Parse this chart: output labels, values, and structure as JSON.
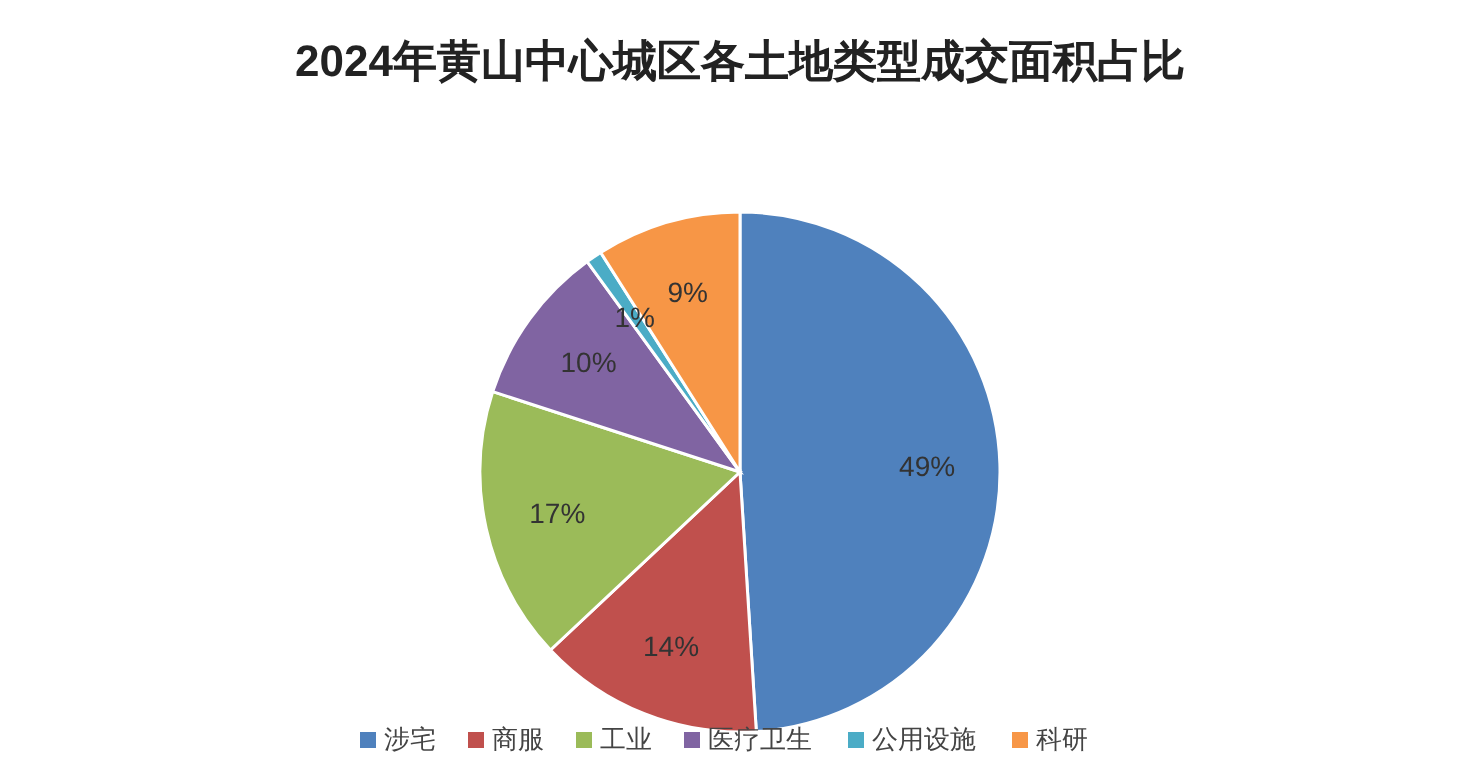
{
  "chart_data": {
    "type": "pie",
    "title": "2024年黄山中心城区各土地类型成交面积占比",
    "categories": [
      "涉宅",
      "商服",
      "工业",
      "医疗卫生",
      "公用设施",
      "科研"
    ],
    "values": [
      49,
      14,
      17,
      10,
      1,
      9
    ],
    "value_labels": [
      "49%",
      "14%",
      "17%",
      "10%",
      "1%",
      "9%"
    ],
    "colors": [
      "#4f81bd",
      "#c0504d",
      "#9bbb59",
      "#8064a2",
      "#4bacc6",
      "#f79646"
    ],
    "legend": "bottom"
  }
}
